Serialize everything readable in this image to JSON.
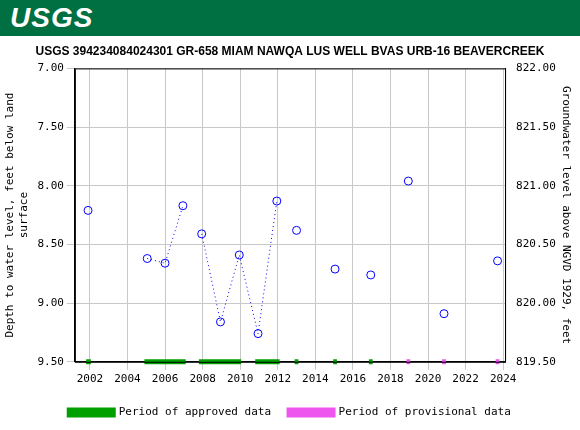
{
  "header": {
    "logo": "USGS"
  },
  "chart_data": {
    "type": "scatter",
    "title": "USGS 394234084024301 GR-658 MIAM NAWQA LUS WELL BVAS URB-16 BEAVERCREEK",
    "ylabel": [
      "Depth to water level, feet below land",
      "surface"
    ],
    "y2label": "Groundwater level above NGVD 1929, feet",
    "xlim": [
      2001.2,
      2024.1
    ],
    "xticks": [
      2002,
      2004,
      2006,
      2008,
      2010,
      2012,
      2014,
      2016,
      2018,
      2020,
      2022,
      2024
    ],
    "ylim": [
      9.5,
      7.0
    ],
    "yticks": [
      {
        "value": 7.0,
        "label": "7.00"
      },
      {
        "value": 7.5,
        "label": "7.50"
      },
      {
        "value": 8.0,
        "label": "8.00"
      },
      {
        "value": 8.5,
        "label": "8.50"
      },
      {
        "value": 9.0,
        "label": "9.00"
      },
      {
        "value": 9.5,
        "label": "9.50"
      }
    ],
    "y2lim": [
      819.5,
      822.0
    ],
    "y2ticks": [
      {
        "value": 819.5,
        "label": "819.50"
      },
      {
        "value": 820.0,
        "label": "820.00"
      },
      {
        "value": 820.5,
        "label": "820.50"
      },
      {
        "value": 821.0,
        "label": "821.00"
      },
      {
        "value": 821.5,
        "label": "821.50"
      },
      {
        "value": 822.0,
        "label": "822.00"
      }
    ],
    "grid": true,
    "legend": "bottom",
    "series": [
      {
        "color": "#0000ff",
        "marker": "circle",
        "line_style": "dotted",
        "x": [
          2001.9
        ],
        "values": [
          8.21
        ]
      },
      {
        "color": "#0000ff",
        "marker": "circle",
        "line_style": "dotted",
        "x": [
          2005.05,
          2006.0,
          2006.95
        ],
        "values": [
          8.62,
          8.66,
          8.17
        ]
      },
      {
        "color": "#0000ff",
        "marker": "circle",
        "line_style": "dotted",
        "x": [
          2007.95,
          2008.95,
          2009.95,
          2010.95,
          2011.95
        ],
        "values": [
          8.41,
          9.16,
          8.59,
          9.26,
          8.13
        ]
      },
      {
        "color": "#0000ff",
        "marker": "circle",
        "line_style": "dotted",
        "x": [
          2013.0
        ],
        "values": [
          8.38
        ]
      },
      {
        "color": "#0000ff",
        "marker": "circle",
        "line_style": "dotted",
        "x": [
          2015.05
        ],
        "values": [
          8.71
        ]
      },
      {
        "color": "#0000ff",
        "marker": "circle",
        "line_style": "dotted",
        "x": [
          2016.95
        ],
        "values": [
          8.76
        ]
      },
      {
        "color": "#0000ff",
        "marker": "circle",
        "line_style": "dotted",
        "x": [
          2018.95
        ],
        "values": [
          7.96
        ]
      },
      {
        "color": "#0000ff",
        "marker": "circle",
        "line_style": "dotted",
        "x": [
          2020.85
        ],
        "values": [
          9.09
        ]
      },
      {
        "color": "#0000ff",
        "marker": "circle",
        "line_style": "dotted",
        "x": [
          2023.7
        ],
        "values": [
          8.64
        ]
      }
    ],
    "periods": [
      {
        "name": "Period of approved data",
        "color": "#00a000",
        "ranges": [
          [
            2001.8,
            2002.05
          ],
          [
            2004.9,
            2007.1
          ],
          [
            2007.8,
            2010.05
          ],
          [
            2010.8,
            2012.1
          ],
          [
            2012.9,
            2013.1
          ],
          [
            2014.95,
            2015.15
          ],
          [
            2016.85,
            2017.05
          ]
        ]
      },
      {
        "name": "Period of provisional data",
        "color": "#ee55ee",
        "ranges": [
          [
            2018.85,
            2019.05
          ],
          [
            2020.75,
            2020.95
          ],
          [
            2023.6,
            2023.8
          ]
        ]
      }
    ]
  }
}
